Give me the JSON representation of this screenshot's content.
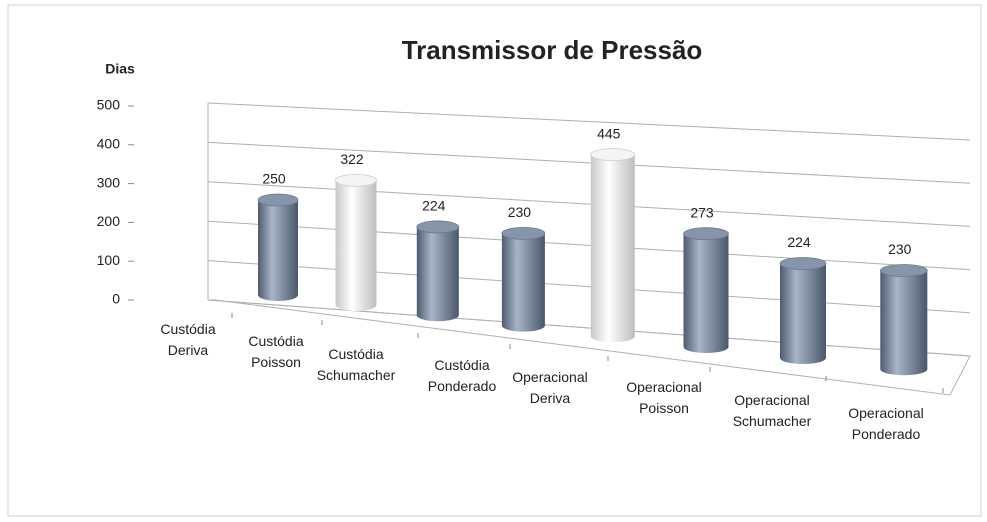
{
  "chart_data": {
    "type": "bar3d-cylinder",
    "title": "Transmissor de Pressão",
    "y_label": "Dias",
    "categories": [
      "Custódia Deriva",
      "Custódia Poisson",
      "Custódia Schumacher",
      "Custódia Ponderado",
      "Operacional Deriva",
      "Operacional Poisson",
      "Operacional Schumacher",
      "Operacional Ponderado"
    ],
    "values": [
      250,
      322,
      224,
      230,
      445,
      273,
      224,
      230
    ],
    "colors": [
      "#8795aa",
      "#f4f4f4",
      "#8795aa",
      "#8795aa",
      "#f4f4f4",
      "#8795aa",
      "#8795aa",
      "#8795aa"
    ],
    "ylim": [
      0,
      500
    ],
    "yticks": [
      0,
      100,
      200,
      300,
      400,
      500
    ],
    "grid": true
  }
}
